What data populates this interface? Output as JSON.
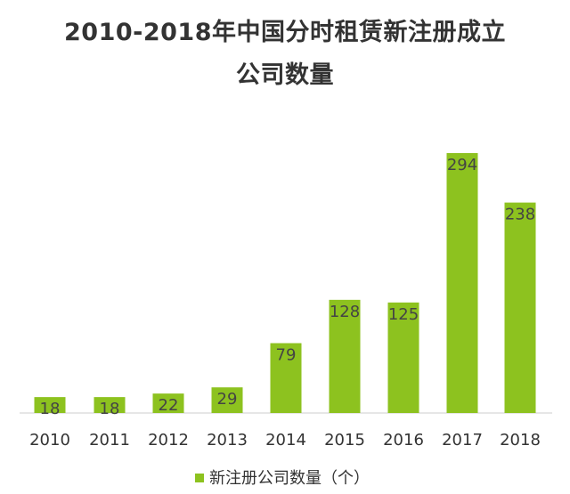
{
  "chart_data": {
    "type": "bar",
    "title_lines": [
      "2010-2018年中国分时租赁新注册成立",
      "公司数量"
    ],
    "categories": [
      "2010",
      "2011",
      "2012",
      "2013",
      "2014",
      "2015",
      "2016",
      "2017",
      "2018"
    ],
    "series": [
      {
        "name": "新注册公司数量（个）",
        "values": [
          18,
          18,
          22,
          29,
          79,
          128,
          125,
          294,
          238
        ],
        "color": "#8DC21F"
      }
    ],
    "xlabel": "",
    "ylabel": "",
    "ylim": [
      0,
      300
    ],
    "grid": false,
    "legend_position": "bottom"
  }
}
